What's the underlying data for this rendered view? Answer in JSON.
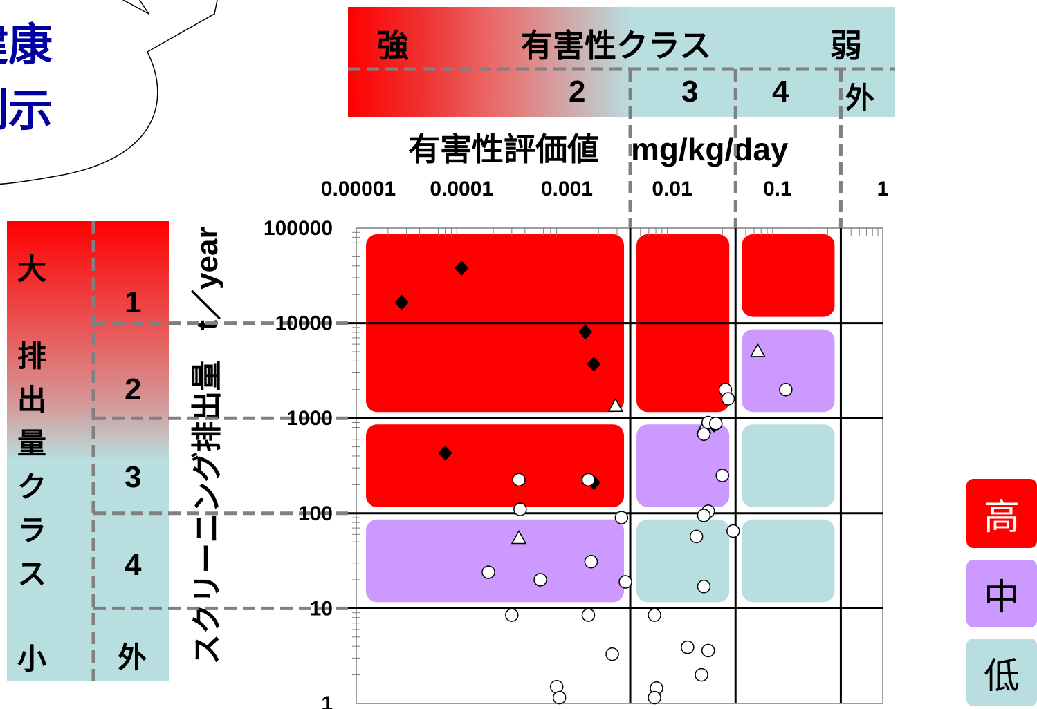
{
  "speech_bubble": {
    "line1": "健康",
    "line2": "例示"
  },
  "hazard_band": {
    "strong": "強",
    "title": "有害性クラス",
    "weak": "弱",
    "classes": [
      "2",
      "3",
      "4",
      "外"
    ]
  },
  "emission_band": {
    "large": "大",
    "title_chars": [
      "排",
      "出",
      "量",
      "ク",
      "ラ",
      "ス"
    ],
    "small": "小",
    "classes": [
      "1",
      "2",
      "3",
      "4",
      "外"
    ]
  },
  "priority_legend": {
    "high": "高",
    "medium": "中",
    "low": "低"
  },
  "colors": {
    "high": "#ff0000",
    "medium": "#cc99ff",
    "low": "#b8dee0",
    "guide": "#808080"
  },
  "chart_data": {
    "type": "scatter",
    "x_scale": "log",
    "y_scale": "log",
    "xlabel": "有害性評価値　mg/kg/day",
    "ylabel": "スクリーニング排出量　t／year",
    "x_ticks": [
      "0.00001",
      "0.0001",
      "0.001",
      "0.01",
      "0.1",
      "1"
    ],
    "y_ticks": [
      "100000",
      "10000",
      "1000",
      "100",
      "10",
      "1"
    ],
    "xlim": [
      1e-05,
      1
    ],
    "ylim": [
      1,
      100000
    ],
    "hazard_class_bounds": [
      0.004,
      0.04,
      0.4
    ],
    "emission_class_bounds": [
      10,
      100,
      1000,
      10000
    ],
    "priority_zones": [
      {
        "x": [
          1e-05,
          0.004
        ],
        "y": [
          1000,
          100000
        ],
        "level": "high"
      },
      {
        "x": [
          0.004,
          0.04
        ],
        "y": [
          1000,
          100000
        ],
        "level": "high"
      },
      {
        "x": [
          0.04,
          0.4
        ],
        "y": [
          10000,
          100000
        ],
        "level": "high"
      },
      {
        "x": [
          1e-05,
          0.004
        ],
        "y": [
          100,
          1000
        ],
        "level": "high"
      },
      {
        "x": [
          0.04,
          0.4
        ],
        "y": [
          1000,
          10000
        ],
        "level": "medium"
      },
      {
        "x": [
          0.004,
          0.04
        ],
        "y": [
          100,
          1000
        ],
        "level": "medium"
      },
      {
        "x": [
          1e-05,
          0.004
        ],
        "y": [
          10,
          100
        ],
        "level": "medium"
      },
      {
        "x": [
          0.04,
          0.4
        ],
        "y": [
          100,
          1000
        ],
        "level": "low"
      },
      {
        "x": [
          0.004,
          0.04
        ],
        "y": [
          10,
          100
        ],
        "level": "low"
      },
      {
        "x": [
          0.04,
          0.4
        ],
        "y": [
          10,
          100
        ],
        "level": "low"
      }
    ],
    "series": [
      {
        "marker": "diamond",
        "points": [
          [
            2.7e-05,
            16500
          ],
          [
            0.0001,
            38000
          ],
          [
            0.0015,
            8100
          ],
          [
            0.0018,
            3700
          ],
          [
            7e-05,
            430
          ],
          [
            0.0018,
            210
          ],
          [
            0.025,
            850
          ]
        ]
      },
      {
        "marker": "triangle",
        "points": [
          [
            0.0029,
            1350
          ],
          [
            0.00035,
            55
          ],
          [
            0.02,
            800
          ],
          [
            0.065,
            5100
          ]
        ]
      },
      {
        "marker": "circle",
        "points": [
          [
            0.032,
            2000
          ],
          [
            0.034,
            1600
          ],
          [
            0.12,
            2000
          ],
          [
            0.022,
            900
          ],
          [
            0.026,
            880
          ],
          [
            0.02,
            680
          ],
          [
            0.03,
            250
          ],
          [
            0.00035,
            225
          ],
          [
            0.0016,
            225
          ],
          [
            0.00036,
            110
          ],
          [
            0.022,
            105
          ],
          [
            0.02,
            95
          ],
          [
            0.0033,
            90
          ],
          [
            0.038,
            65
          ],
          [
            0.017,
            57
          ],
          [
            0.00018,
            24
          ],
          [
            0.00056,
            20
          ],
          [
            0.0017,
            31
          ],
          [
            0.0036,
            19
          ],
          [
            0.02,
            17
          ],
          [
            0.0003,
            8.5
          ],
          [
            0.0016,
            8.5
          ],
          [
            0.0068,
            8.5
          ],
          [
            0.0027,
            3.3
          ],
          [
            0.014,
            3.9
          ],
          [
            0.022,
            3.6
          ],
          [
            0.019,
            2
          ],
          [
            0.0008,
            1.5
          ],
          [
            0.00085,
            1.15
          ],
          [
            0.0071,
            1.45
          ],
          [
            0.0068,
            1.15
          ]
        ]
      }
    ]
  }
}
